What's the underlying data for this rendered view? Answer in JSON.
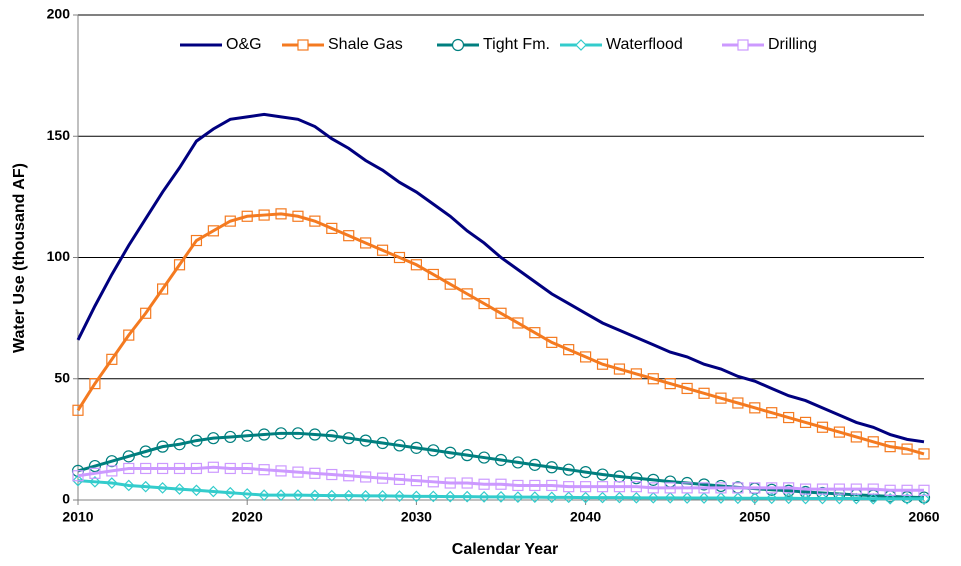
{
  "chart_data": {
    "type": "line",
    "x_label": "Calendar Year",
    "y_label": "Water Use (thousand AF)",
    "x": [
      2010,
      2011,
      2012,
      2013,
      2014,
      2015,
      2016,
      2017,
      2018,
      2019,
      2020,
      2021,
      2022,
      2023,
      2024,
      2025,
      2026,
      2027,
      2028,
      2029,
      2030,
      2031,
      2032,
      2033,
      2034,
      2035,
      2036,
      2037,
      2038,
      2039,
      2040,
      2041,
      2042,
      2043,
      2044,
      2045,
      2046,
      2047,
      2048,
      2049,
      2050,
      2051,
      2052,
      2053,
      2054,
      2055,
      2056,
      2057,
      2058,
      2059,
      2060
    ],
    "xlim": [
      2010,
      2060
    ],
    "xticks": [
      2010,
      2020,
      2030,
      2040,
      2050,
      2060
    ],
    "ylim": [
      0,
      200
    ],
    "yticks": [
      0,
      50,
      100,
      150,
      200
    ],
    "grid": true,
    "legend": "top",
    "series": [
      {
        "name": "O&G",
        "color": "#00007f",
        "values": [
          66,
          80,
          93,
          105,
          116,
          127,
          137,
          148,
          153,
          157,
          158,
          159,
          158,
          157,
          154,
          149,
          145,
          140,
          136,
          131,
          127,
          122,
          117,
          111,
          106,
          100,
          95,
          90,
          85,
          81,
          77,
          73,
          70,
          67,
          64,
          61,
          59,
          56,
          54,
          51,
          49,
          46,
          43,
          41,
          38,
          35,
          32,
          30,
          27,
          25,
          24
        ]
      },
      {
        "name": "Shale Gas",
        "color": "#f47a20",
        "marker": "square",
        "values": [
          37,
          48,
          58,
          68,
          77,
          87,
          97,
          107,
          111,
          115,
          117,
          117.5,
          118,
          117,
          115,
          112,
          109,
          106,
          103,
          100,
          97,
          93,
          89,
          85,
          81,
          77,
          73,
          69,
          65,
          62,
          59,
          56,
          54,
          52,
          50,
          48,
          46,
          44,
          42,
          40,
          38,
          36,
          34,
          32,
          30,
          28,
          26,
          24,
          22,
          21,
          19
        ]
      },
      {
        "name": "Tight Fm.",
        "color": "#007f7f",
        "marker": "circle",
        "values": [
          12,
          14,
          16,
          18,
          20,
          22,
          23,
          24.5,
          25.5,
          26,
          26.5,
          27,
          27.5,
          27.5,
          27,
          26.5,
          25.5,
          24.5,
          23.5,
          22.5,
          21.5,
          20.5,
          19.5,
          18.5,
          17.5,
          16.5,
          15.5,
          14.5,
          13.5,
          12.5,
          11.5,
          10.5,
          9.7,
          9,
          8.3,
          7.6,
          7,
          6.4,
          5.8,
          5.2,
          4.7,
          4.2,
          3.8,
          3.3,
          2.9,
          2.5,
          2.1,
          1.8,
          1.5,
          1.2,
          1
        ]
      },
      {
        "name": "Waterflood",
        "color": "#33cccc",
        "marker": "diamond",
        "values": [
          8,
          7.5,
          7,
          6,
          5.5,
          5,
          4.5,
          4,
          3.5,
          3,
          2.5,
          2,
          2,
          2,
          1.9,
          1.8,
          1.8,
          1.7,
          1.7,
          1.6,
          1.5,
          1.5,
          1.4,
          1.4,
          1.3,
          1.3,
          1.2,
          1.2,
          1.1,
          1.1,
          1,
          1,
          1,
          0.9,
          0.9,
          0.9,
          0.8,
          0.8,
          0.8,
          0.7,
          0.7,
          0.7,
          0.7,
          0.6,
          0.6,
          0.6,
          0.6,
          0.5,
          0.5,
          0.5,
          0.5
        ]
      },
      {
        "name": "Drilling",
        "color": "#cc99ff",
        "marker": "square",
        "values": [
          10,
          11,
          12,
          13,
          13,
          13,
          13,
          13,
          13.5,
          13,
          13,
          12.5,
          12,
          11.5,
          11,
          10.5,
          10,
          9.5,
          9,
          8.5,
          8,
          7.5,
          7,
          7,
          6.5,
          6.5,
          6,
          6,
          6,
          5.5,
          5.5,
          5.5,
          5.5,
          5.5,
          5,
          5,
          5,
          5,
          5,
          5,
          5,
          5,
          5,
          4.5,
          4.5,
          4.5,
          4.5,
          4.5,
          4,
          4,
          4
        ]
      }
    ]
  }
}
